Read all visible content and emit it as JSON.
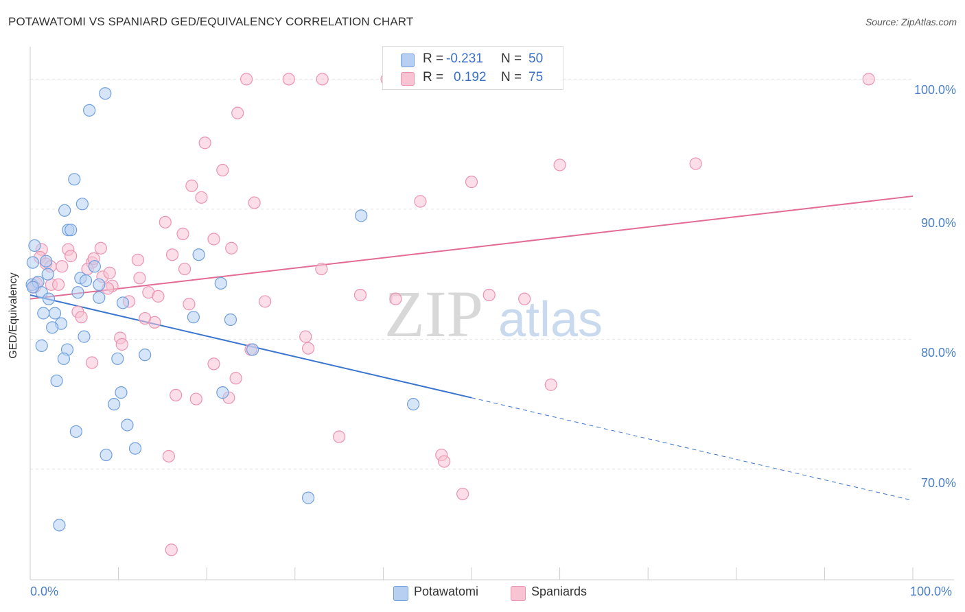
{
  "title": "POTAWATOMI VS SPANIARD GED/EQUIVALENCY CORRELATION CHART",
  "source": "Source: ZipAtlas.com",
  "legend_top": {
    "rows": [
      {
        "r_key": "R =",
        "r_value": "-0.231",
        "n_key": "N =",
        "n_value": "50"
      },
      {
        "r_key": "R =",
        "r_value": "0.192",
        "n_key": "N =",
        "n_value": "75"
      }
    ]
  },
  "colors": {
    "blue_fill": "#b7d0f2",
    "blue_stroke": "#6f9fde",
    "blue_line": "#3a75d0",
    "pink_fill": "#f8c3d3",
    "pink_stroke": "#ec93b0",
    "pink_line": "#e36b93",
    "tick_text": "#4a7fc8",
    "grid": "#dddddd"
  },
  "chart_data": {
    "type": "scatter",
    "title": "POTAWATOMI VS SPANIARD GED/EQUIVALENCY CORRELATION CHART",
    "xlabel": "",
    "ylabel": "GED/Equivalency",
    "xlim": [
      0,
      100
    ],
    "ylim": [
      61.5,
      102.5
    ],
    "x_tick_labels": [
      "0.0%",
      "100.0%"
    ],
    "y_ticks": [
      70,
      80,
      90,
      100
    ],
    "y_tick_labels": [
      "70.0%",
      "80.0%",
      "90.0%",
      "100.0%"
    ],
    "grid": true,
    "legend_placement": "bottom-center",
    "watermark": "ZIPatlas",
    "series": [
      {
        "name": "Potawatomi",
        "color": "#6f9fde",
        "r": -0.231,
        "n": 50,
        "trend": {
          "x": [
            0,
            50
          ],
          "y": [
            83.4,
            75.5
          ],
          "dashed_to": [
            100,
            67.6
          ]
        },
        "points": [
          [
            0.5,
            87.2
          ],
          [
            0.3,
            85.9
          ],
          [
            1.8,
            86.0
          ],
          [
            2.0,
            85.0
          ],
          [
            0.2,
            84.2
          ],
          [
            0.9,
            84.4
          ],
          [
            1.3,
            83.6
          ],
          [
            2.1,
            83.1
          ],
          [
            1.5,
            82.0
          ],
          [
            2.8,
            82.0
          ],
          [
            3.5,
            81.2
          ],
          [
            2.5,
            80.9
          ],
          [
            1.3,
            79.5
          ],
          [
            4.2,
            79.2
          ],
          [
            3.8,
            78.5
          ],
          [
            3.0,
            76.8
          ],
          [
            8.5,
            98.9
          ],
          [
            6.7,
            97.6
          ],
          [
            5.0,
            92.3
          ],
          [
            5.9,
            90.4
          ],
          [
            3.9,
            89.9
          ],
          [
            4.3,
            88.4
          ],
          [
            4.6,
            88.4
          ],
          [
            7.3,
            85.6
          ],
          [
            5.7,
            84.7
          ],
          [
            6.3,
            84.5
          ],
          [
            5.4,
            83.6
          ],
          [
            7.8,
            84.2
          ],
          [
            7.8,
            83.2
          ],
          [
            10.5,
            82.8
          ],
          [
            6.1,
            80.2
          ],
          [
            9.9,
            78.5
          ],
          [
            13.0,
            78.8
          ],
          [
            10.3,
            75.9
          ],
          [
            9.5,
            75.0
          ],
          [
            11.0,
            73.4
          ],
          [
            5.2,
            72.9
          ],
          [
            8.6,
            71.1
          ],
          [
            11.9,
            71.6
          ],
          [
            3.3,
            65.7
          ],
          [
            19.1,
            86.5
          ],
          [
            18.5,
            81.7
          ],
          [
            21.6,
            84.3
          ],
          [
            22.7,
            81.5
          ],
          [
            25.2,
            79.2
          ],
          [
            21.8,
            75.9
          ],
          [
            37.5,
            89.5
          ],
          [
            31.5,
            67.8
          ],
          [
            43.4,
            75.0
          ],
          [
            0.3,
            84.0
          ]
        ]
      },
      {
        "name": "Spaniards",
        "color": "#ec93b0",
        "r": 0.192,
        "n": 75,
        "trend": {
          "x": [
            0,
            100
          ],
          "y": [
            83.1,
            91.0
          ]
        },
        "points": [
          [
            1.3,
            86.9
          ],
          [
            1.1,
            86.3
          ],
          [
            1.8,
            85.8
          ],
          [
            2.3,
            85.6
          ],
          [
            3.6,
            85.6
          ],
          [
            0.7,
            84.3
          ],
          [
            2.4,
            84.2
          ],
          [
            3.2,
            84.2
          ],
          [
            4.3,
            86.9
          ],
          [
            4.6,
            86.4
          ],
          [
            5.4,
            82.1
          ],
          [
            5.8,
            81.7
          ],
          [
            7.0,
            85.9
          ],
          [
            6.5,
            85.4
          ],
          [
            7.2,
            86.2
          ],
          [
            8.0,
            87.0
          ],
          [
            8.2,
            84.8
          ],
          [
            9.0,
            85.1
          ],
          [
            9.3,
            84.1
          ],
          [
            8.8,
            83.9
          ],
          [
            7.0,
            78.2
          ],
          [
            10.2,
            80.1
          ],
          [
            10.4,
            79.6
          ],
          [
            11.2,
            82.9
          ],
          [
            12.2,
            86.1
          ],
          [
            12.4,
            84.7
          ],
          [
            13.0,
            81.6
          ],
          [
            14.1,
            81.3
          ],
          [
            13.4,
            83.6
          ],
          [
            14.5,
            83.3
          ],
          [
            15.3,
            89.0
          ],
          [
            15.7,
            71.0
          ],
          [
            16.0,
            63.8
          ],
          [
            16.1,
            86.5
          ],
          [
            16.5,
            75.7
          ],
          [
            17.3,
            88.1
          ],
          [
            17.5,
            85.4
          ],
          [
            18.0,
            82.7
          ],
          [
            18.3,
            91.8
          ],
          [
            18.8,
            75.4
          ],
          [
            19.4,
            90.9
          ],
          [
            19.8,
            95.1
          ],
          [
            20.8,
            87.7
          ],
          [
            20.8,
            78.1
          ],
          [
            21.8,
            93.0
          ],
          [
            22.5,
            75.5
          ],
          [
            22.8,
            87.0
          ],
          [
            23.3,
            77.0
          ],
          [
            23.5,
            97.4
          ],
          [
            24.5,
            100.0
          ],
          [
            25.0,
            79.2
          ],
          [
            25.4,
            90.5
          ],
          [
            26.6,
            82.9
          ],
          [
            29.3,
            100.0
          ],
          [
            31.2,
            80.2
          ],
          [
            31.5,
            79.3
          ],
          [
            33.1,
            100.0
          ],
          [
            33.0,
            85.4
          ],
          [
            35.0,
            72.5
          ],
          [
            37.4,
            83.4
          ],
          [
            40.4,
            100.0
          ],
          [
            41.4,
            83.1
          ],
          [
            44.2,
            90.6
          ],
          [
            46.6,
            71.1
          ],
          [
            46.9,
            70.6
          ],
          [
            49.0,
            68.1
          ],
          [
            50.0,
            92.1
          ],
          [
            52.0,
            83.4
          ],
          [
            56.0,
            83.1
          ],
          [
            59.0,
            76.5
          ],
          [
            60.0,
            93.4
          ],
          [
            75.4,
            93.5
          ],
          [
            95.0,
            100.0
          ],
          [
            49.5,
            100.0
          ],
          [
            0.5,
            84.0
          ]
        ]
      }
    ]
  }
}
